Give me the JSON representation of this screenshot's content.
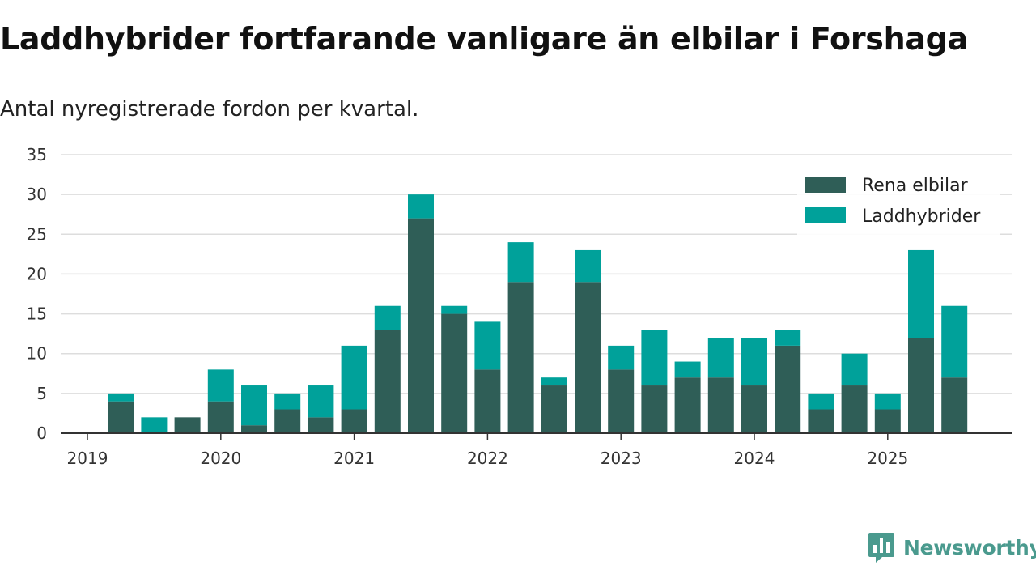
{
  "colors": {
    "electric": "#2f5e57",
    "hybrid": "#00a19a",
    "grid": "#dddddd",
    "axis": "#333333",
    "brand": "#4a9a8e"
  },
  "branding": {
    "name": "Newsworthy",
    "icon": "newsworthy-logo-icon"
  },
  "chart_data": {
    "type": "bar",
    "stacked": true,
    "title": "Laddhybrider fortfarande vanligare än elbilar i Forshaga",
    "subtitle": "Antal nyregistrerade fordon per kvartal.",
    "xlabel": "",
    "ylabel": "",
    "ylim": [
      0,
      35
    ],
    "yticks": [
      0,
      5,
      10,
      15,
      20,
      25,
      30,
      35
    ],
    "xticks": [
      "2019",
      "2020",
      "2021",
      "2022",
      "2023",
      "2024",
      "2025"
    ],
    "legend": {
      "position": "top-right",
      "entries": [
        "Rena elbilar",
        "Laddhybrider"
      ]
    },
    "categories": [
      "2019 Q1",
      "2019 Q2",
      "2019 Q3",
      "2019 Q4",
      "2020 Q1",
      "2020 Q2",
      "2020 Q3",
      "2020 Q4",
      "2021 Q1",
      "2021 Q2",
      "2021 Q3",
      "2021 Q4",
      "2022 Q1",
      "2022 Q2",
      "2022 Q3",
      "2022 Q4",
      "2023 Q1",
      "2023 Q2",
      "2023 Q3",
      "2023 Q4",
      "2024 Q1",
      "2024 Q2",
      "2024 Q3",
      "2024 Q4",
      "2025 Q1",
      "2025 Q2",
      "2025 Q3"
    ],
    "series": [
      {
        "name": "Rena elbilar",
        "values": [
          0,
          4,
          0,
          2,
          4,
          1,
          3,
          2,
          3,
          13,
          27,
          15,
          8,
          19,
          6,
          19,
          8,
          6,
          7,
          7,
          6,
          11,
          3,
          6,
          3,
          12,
          7
        ]
      },
      {
        "name": "Laddhybrider",
        "values": [
          0,
          1,
          2,
          0,
          4,
          5,
          2,
          4,
          8,
          3,
          3,
          1,
          6,
          5,
          1,
          4,
          3,
          7,
          2,
          5,
          6,
          2,
          2,
          4,
          2,
          11,
          9
        ]
      }
    ]
  }
}
